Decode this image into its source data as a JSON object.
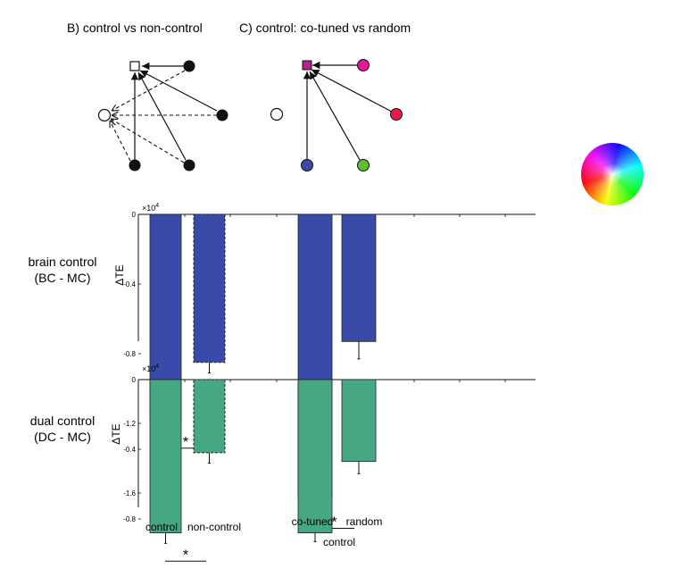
{
  "panels": {
    "b_title": "B) control vs non-control",
    "c_title": "C) control: co-tuned vs random"
  },
  "colors": {
    "bar_blue": "#3a4aa8",
    "bar_green": "#45a882",
    "node_magenta": "#b0208f",
    "node_pink": "#e8169a",
    "node_red": "#e81848",
    "node_blue": "#3a4aa8",
    "node_green": "#5cc02a"
  },
  "chart_data": [
    {
      "type": "bar",
      "row_label": [
        "brain control",
        "(BC - MC)"
      ],
      "ylabel": "ΔTE",
      "exponent": "×10",
      "exponent_power": "4",
      "ylim": [
        -1.8,
        0
      ],
      "yticks": [
        0,
        -0.4,
        -0.8,
        -1.2,
        -1.6
      ],
      "ytick_labels": [
        "0",
        "-0.4",
        "-0.8",
        "-1.2",
        "-1.6"
      ],
      "categories": [
        "control",
        "non-control",
        "co-tuned",
        "random"
      ],
      "values": [
        -1.18,
        -0.85,
        -1.62,
        -0.73
      ],
      "errors": [
        0.06,
        0.06,
        0.07,
        0.1
      ],
      "fill": [
        "blue",
        "blue",
        "blue",
        "blue"
      ],
      "dashed": [
        false,
        true,
        false,
        false
      ],
      "significance": [
        {
          "between": [
            "control",
            "non-control"
          ],
          "label": "*"
        },
        {
          "between": [
            "co-tuned",
            "random"
          ],
          "label": "*"
        }
      ]
    },
    {
      "type": "bar",
      "row_label": [
        "dual control",
        "(DC - MC)"
      ],
      "ylabel": "ΔTE",
      "exponent": "×10",
      "exponent_power": "4",
      "ylim": [
        -1.4,
        0
      ],
      "yticks": [
        0,
        -0.4,
        -0.8,
        -1.2
      ],
      "ytick_labels": [
        "0",
        "-0.4",
        "-0.8",
        "-1.2"
      ],
      "categories": [
        "control",
        "non-control",
        "co-tuned",
        "random"
      ],
      "values": [
        -0.88,
        -0.42,
        -0.88,
        -0.47
      ],
      "errors": [
        0.06,
        0.06,
        0.05,
        0.07
      ],
      "fill": [
        "green",
        "green",
        "green",
        "green"
      ],
      "dashed": [
        false,
        true,
        false,
        false
      ],
      "significance": [
        {
          "between": [
            "control",
            "non-control"
          ],
          "label": "*"
        }
      ]
    }
  ],
  "xaxis": {
    "tick_labels": [
      "control",
      "non-control",
      "co-tuned",
      "random"
    ],
    "group_label": "control"
  }
}
